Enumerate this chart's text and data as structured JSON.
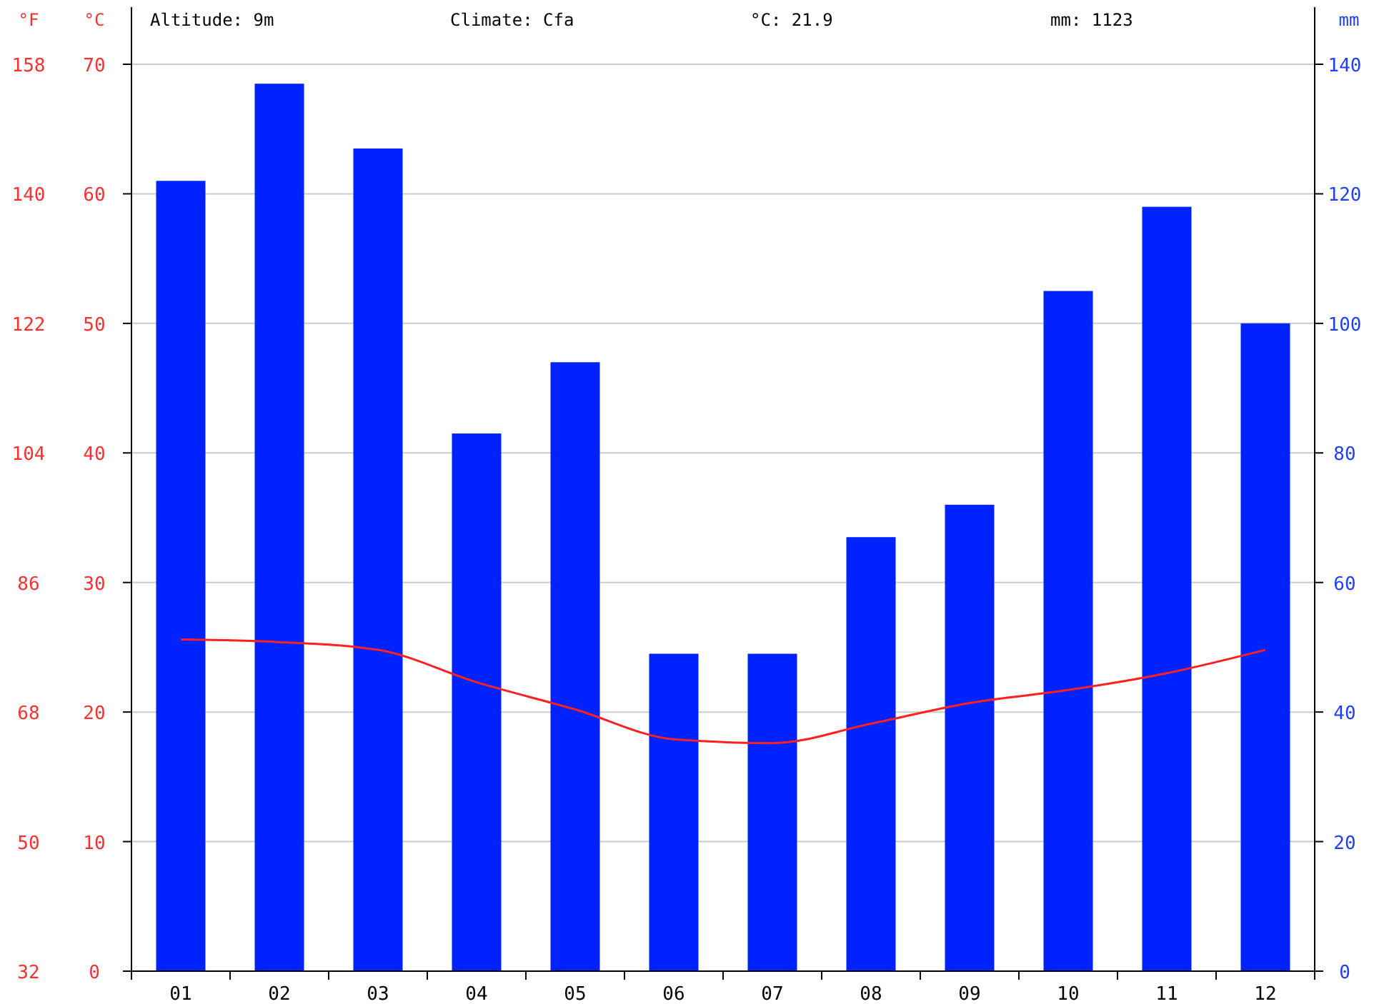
{
  "chart_data": {
    "type": "bar",
    "categories": [
      "01",
      "02",
      "03",
      "04",
      "05",
      "06",
      "07",
      "08",
      "09",
      "10",
      "11",
      "12"
    ],
    "series": [
      {
        "axis": "y2",
        "color": "#0022ff",
        "values": [
          122,
          137,
          127,
          83,
          94,
          49,
          49,
          67,
          72,
          105,
          118,
          100
        ]
      },
      {
        "type": "line",
        "axis": "y",
        "color": "#ff2020",
        "values": [
          25.6,
          25.4,
          24.8,
          22.3,
          20.2,
          17.9,
          17.6,
          19.1,
          20.7,
          21.7,
          23.0,
          24.8
        ]
      }
    ],
    "ylabel": "°C",
    "y2label": "mm",
    "y3label": "°F",
    "ylim": [
      0,
      70
    ],
    "yticks": [
      0,
      10,
      20,
      30,
      40,
      50,
      60,
      70
    ],
    "y2lim": [
      0,
      140
    ],
    "y2ticks": [
      0,
      20,
      40,
      60,
      80,
      100,
      120,
      140
    ],
    "y3lim": [
      32,
      158
    ],
    "y3ticks": [
      32,
      50,
      68,
      86,
      104,
      122,
      140,
      158
    ],
    "grid": "y",
    "marker": "none",
    "line_style": "solid",
    "annotations": [
      "Altitude: 9m",
      "Climate: Cfa",
      "°C: 21.9",
      "mm: 1123"
    ]
  }
}
